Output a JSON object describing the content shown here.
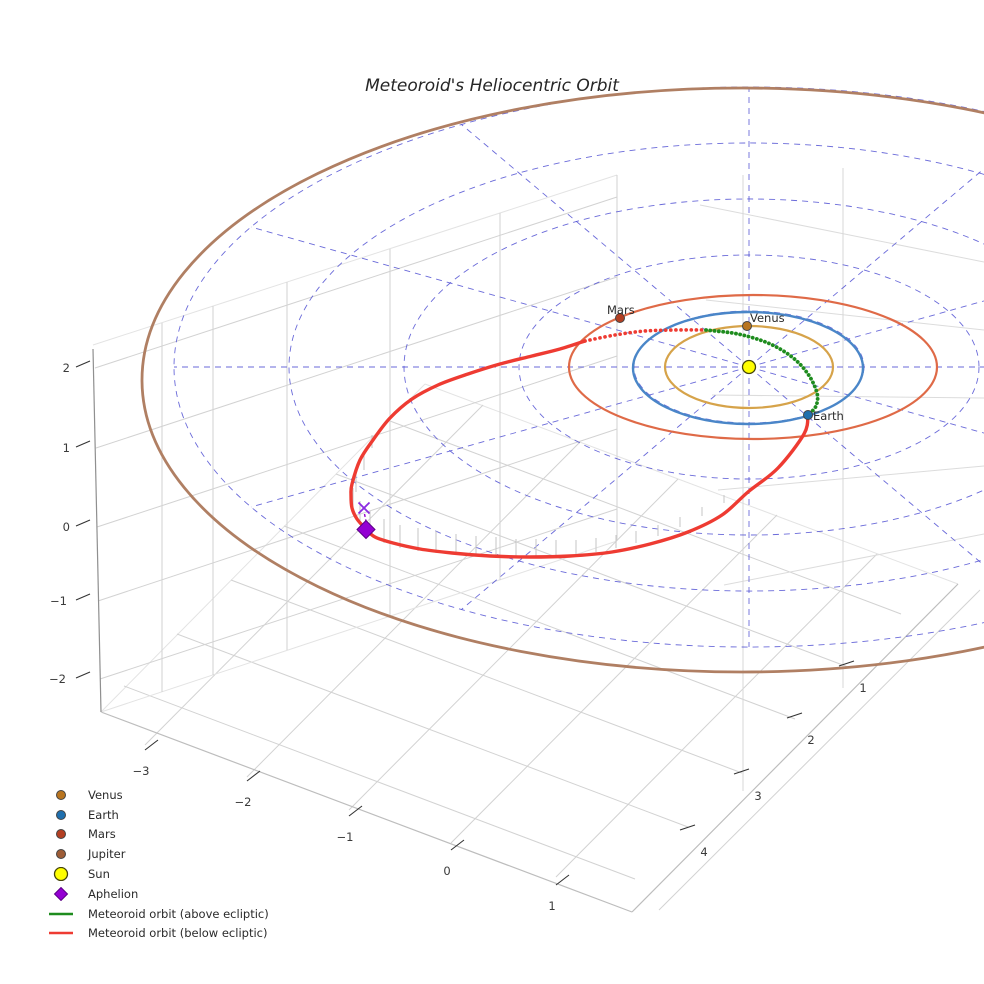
{
  "title": "Meteoroid's Heliocentric Orbit",
  "axes": {
    "z_ticks": [
      "2",
      "1",
      "0",
      "−1",
      "−2"
    ],
    "x_ticks": [
      "−3",
      "−2",
      "−1",
      "0",
      "1"
    ],
    "y_ticks": [
      "1",
      "2",
      "3",
      "4"
    ]
  },
  "plot": {
    "planet_labels": [
      {
        "text": "Mars"
      },
      {
        "text": "Venus"
      },
      {
        "text": "Earth"
      }
    ]
  },
  "legend": {
    "items": [
      {
        "label": "Venus",
        "marker": "dot",
        "color": "#b8741f"
      },
      {
        "label": "Earth",
        "marker": "dot",
        "color": "#1f6fae"
      },
      {
        "label": "Mars",
        "marker": "dot",
        "color": "#b33f22"
      },
      {
        "label": "Jupiter",
        "marker": "dot",
        "color": "#9d5c36"
      },
      {
        "label": "Sun",
        "marker": "dot-large",
        "color": "#ffff00"
      },
      {
        "label": "Aphelion",
        "marker": "diamond",
        "color": "#9400d3"
      },
      {
        "label": "Meteoroid orbit (above ecliptic)",
        "marker": "line",
        "color": "#1e8c1e"
      },
      {
        "label": "Meteoroid orbit (below ecliptic)",
        "marker": "line",
        "color": "#ee3b32"
      }
    ]
  },
  "colors": {
    "grid_gray": "#d2d2d2",
    "pane_edge": "#bdbdbd",
    "spine": "#8f8f8f",
    "tick": "#333333",
    "tick_label": "#3a3a3a",
    "ecliptic_grid": "#4545d0",
    "venus_orbit": "#d6a34a",
    "earth_orbit": "#4a86c8",
    "mars_orbit": "#df6a47",
    "jupiter_orbit": "#b07f63",
    "venus_dot": "#b8741f",
    "earth_dot": "#1f6fae",
    "mars_dot": "#b33f22",
    "jupiter_dot": "#9d5c36",
    "sun_fill": "#ffff00",
    "sun_edge": "#44440a",
    "aphelion": "#9400d3",
    "x_marker": "#8a2be2",
    "meteor_above": "#1e8c1e",
    "meteor_below": "#ee3b32",
    "stems": "#c6c6c6",
    "label": "#2b2b2b",
    "title": "#262626"
  },
  "chart_data": {
    "type": "3d-orbit-plot",
    "title": "Meteoroid's Heliocentric Orbit",
    "axis_ranges": {
      "x_au": [
        -3,
        1
      ],
      "y_au": [
        1,
        4
      ],
      "z_au": [
        -2,
        2
      ]
    },
    "bodies": [
      {
        "name": "Sun",
        "position_au": [
          0,
          0,
          0
        ],
        "marker": "yellow circle"
      },
      {
        "name": "Venus",
        "orbit_radius_au": 0.72
      },
      {
        "name": "Earth",
        "orbit_radius_au": 1.0
      },
      {
        "name": "Mars",
        "orbit_radius_au": 1.52
      },
      {
        "name": "Jupiter",
        "orbit_radius_au": 5.2
      }
    ],
    "meteoroid_orbit": {
      "aphelion_au_approx": 4.2,
      "above_ecliptic_segment": "short green arc passing sunward of Earth, nodes near Earth's position",
      "below_ecliptic_segment": "long red arc out to aphelion at lower left",
      "aphelion_marker": "dark-violet diamond with purple X projection marker linked by dashed line",
      "depth_ticks": "short gray vertical stems along below-ecliptic arc"
    },
    "ecliptic_grid": {
      "rings_au": [
        1,
        2,
        3,
        4,
        5
      ],
      "spoke_interval_deg": 30,
      "style": "blue dashed polar grid centered on Sun"
    }
  }
}
